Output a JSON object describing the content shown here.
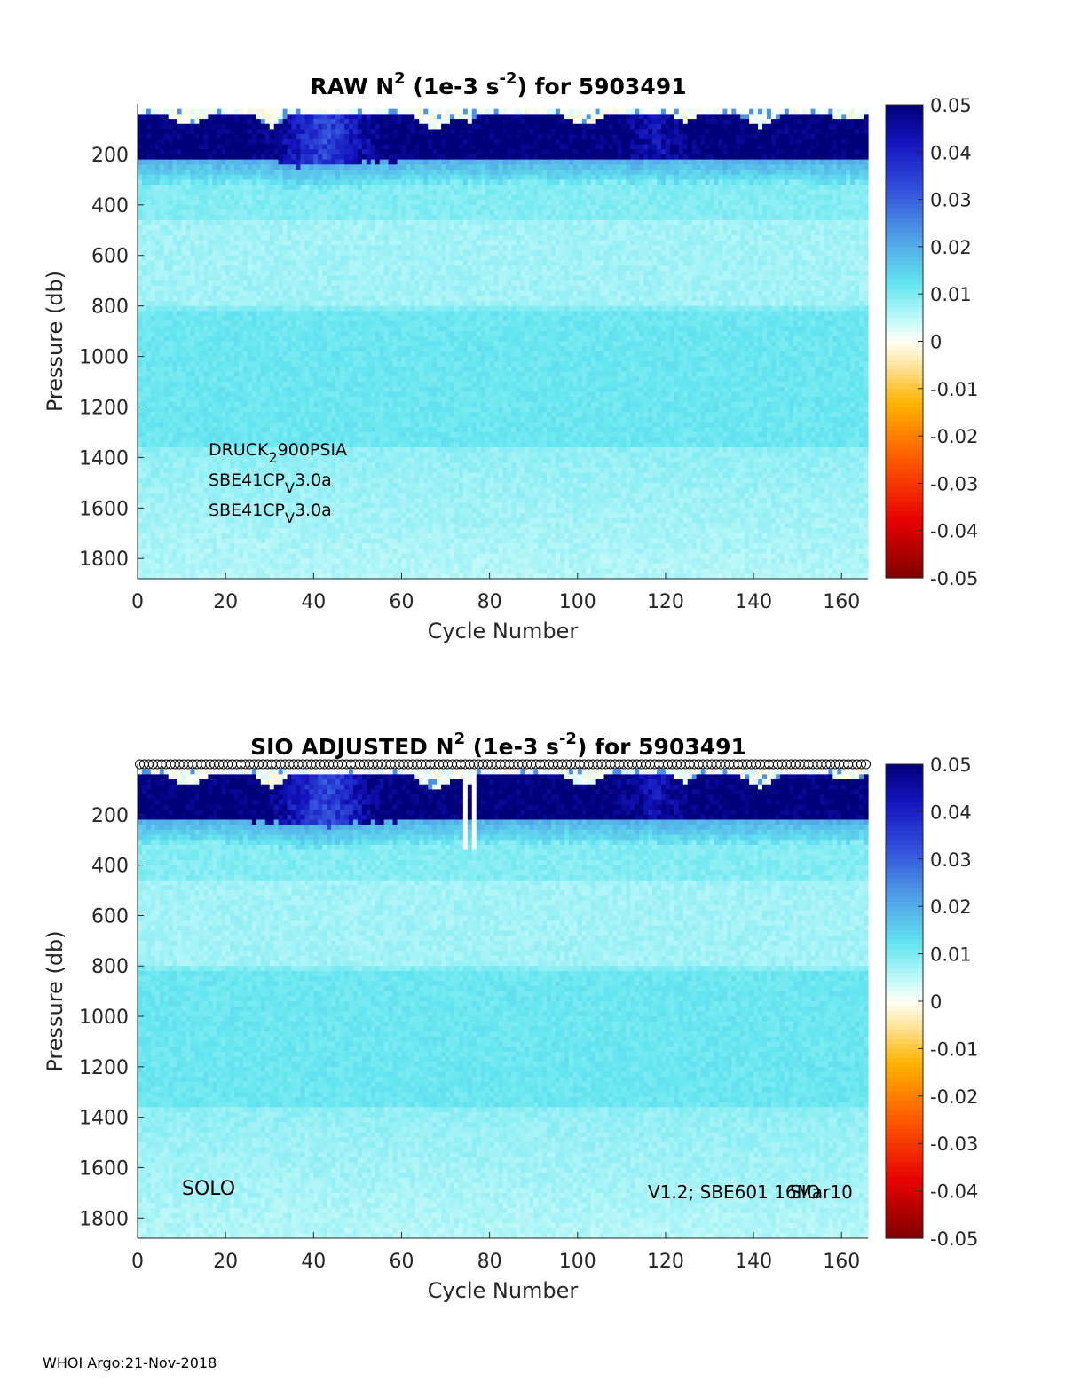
{
  "footer": "WHOI Argo:21-Nov-2018",
  "chart_data": [
    {
      "type": "heatmap",
      "title": {
        "pre": "RAW N",
        "sup1": "2",
        "mid": " (1e-3 s",
        "sup2": "-2",
        "post": ") for 5903491"
      },
      "xlabel": "Cycle Number",
      "ylabel": "Pressure (db)",
      "xlim": [
        0,
        166
      ],
      "ylim": [
        1880,
        0
      ],
      "xticks": [
        "0",
        "20",
        "40",
        "60",
        "80",
        "100",
        "120",
        "140",
        "160"
      ],
      "yticks": [
        "200",
        "400",
        "600",
        "800",
        "1000",
        "1200",
        "1400",
        "1600",
        "1800"
      ],
      "colorbar": {
        "range": [
          -0.05,
          0.05
        ],
        "ticks": [
          "0.05",
          "0.04",
          "0.03",
          "0.02",
          "0.01",
          "0",
          "-0.01",
          "-0.02",
          "-0.03",
          "-0.04",
          "-0.05"
        ],
        "colormap": "jet-white-center"
      },
      "annotations": [
        {
          "pre": "DRUCK",
          "sub": "2",
          "post": "900PSIA"
        },
        {
          "pre": "SBE41CP",
          "sub": "V",
          "post": "3.0a"
        },
        {
          "pre": "SBE41CP",
          "sub": "V",
          "post": "3.0a"
        }
      ],
      "description_of_values": "Strong positive N2 (~0.04-0.05) in upper ~200 db, weakening pockets near cycles 15, 30-50, 70, 100-110, 140; deep values ~0.005-0.01"
    },
    {
      "type": "heatmap",
      "title": {
        "pre": "SIO  ADJUSTED N",
        "sup1": "2",
        "mid": " (1e-3 s",
        "sup2": "-2",
        "post": ") for 5903491"
      },
      "xlabel": "Cycle Number",
      "ylabel": "Pressure (db)",
      "xlim": [
        0,
        166
      ],
      "ylim": [
        1880,
        0
      ],
      "xticks": [
        "0",
        "20",
        "40",
        "60",
        "80",
        "100",
        "120",
        "140",
        "160"
      ],
      "yticks": [
        "200",
        "400",
        "600",
        "800",
        "1000",
        "1200",
        "1400",
        "1600",
        "1800"
      ],
      "colorbar": {
        "range": [
          -0.05,
          0.05
        ],
        "ticks": [
          "0.05",
          "0.04",
          "0.03",
          "0.02",
          "0.01",
          "0",
          "-0.01",
          "-0.02",
          "-0.03",
          "-0.04",
          "-0.05"
        ],
        "colormap": "jet-white-center"
      },
      "annotations": [
        {
          "text": "SOLO"
        },
        {
          "text": "V1.2; SBE601 16Mar10"
        },
        {
          "text": "SIO"
        }
      ],
      "gap_cycles": [
        75,
        77
      ],
      "cycle_markers": "open circles at top for each cycle 1-166"
    }
  ]
}
